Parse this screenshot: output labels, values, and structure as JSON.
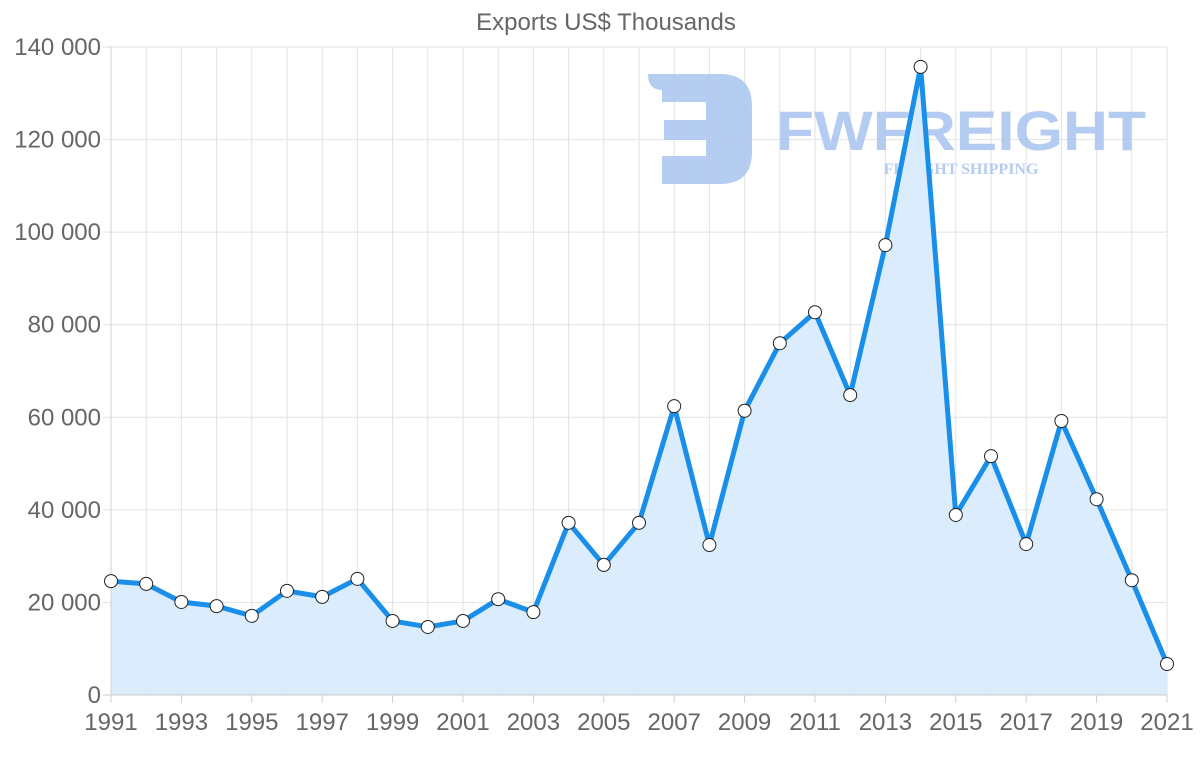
{
  "chart_data": {
    "type": "line",
    "title": "Exports US$ Thousands",
    "xlabel": "",
    "ylabel": "",
    "ylim": [
      0,
      140000
    ],
    "y_ticks": [
      0,
      20000,
      40000,
      60000,
      80000,
      100000,
      120000,
      140000
    ],
    "y_tick_labels": [
      "0",
      "20 000",
      "40 000",
      "60 000",
      "80 000",
      "100 000",
      "120 000",
      "140 000"
    ],
    "x_tick_labels": [
      "1991",
      "1993",
      "1995",
      "1997",
      "1999",
      "2001",
      "2003",
      "2005",
      "2007",
      "2009",
      "2011",
      "2013",
      "2015",
      "2017",
      "2019",
      "2021"
    ],
    "grid": true,
    "legend": null,
    "fill_area": true,
    "categories": [
      1991,
      1992,
      1993,
      1994,
      1995,
      1996,
      1997,
      1998,
      1999,
      2000,
      2001,
      2002,
      2003,
      2004,
      2005,
      2006,
      2007,
      2008,
      2009,
      2010,
      2011,
      2012,
      2013,
      2014,
      2015,
      2016,
      2017,
      2018,
      2019,
      2020,
      2021
    ],
    "series": [
      {
        "name": "Exports US$ Thousands",
        "values": [
          24600,
          24000,
          20100,
          19200,
          17100,
          22500,
          21200,
          25100,
          16000,
          14700,
          16000,
          20700,
          17900,
          37200,
          28100,
          37200,
          62400,
          32400,
          61400,
          76000,
          82700,
          64800,
          97200,
          135700,
          38900,
          51600,
          32600,
          59200,
          42300,
          24800,
          6700
        ]
      }
    ]
  },
  "colors": {
    "line": "#1a8fea",
    "fill": "#d9ecfc",
    "point_fill": "#ffffff",
    "point_stroke": "#222222",
    "grid": "#e2e2e2",
    "text": "#666666",
    "watermark": "#a9c4f0"
  },
  "watermark": {
    "brand": "FWFREIGHT",
    "tagline": "FREIGHT SHIPPING"
  }
}
